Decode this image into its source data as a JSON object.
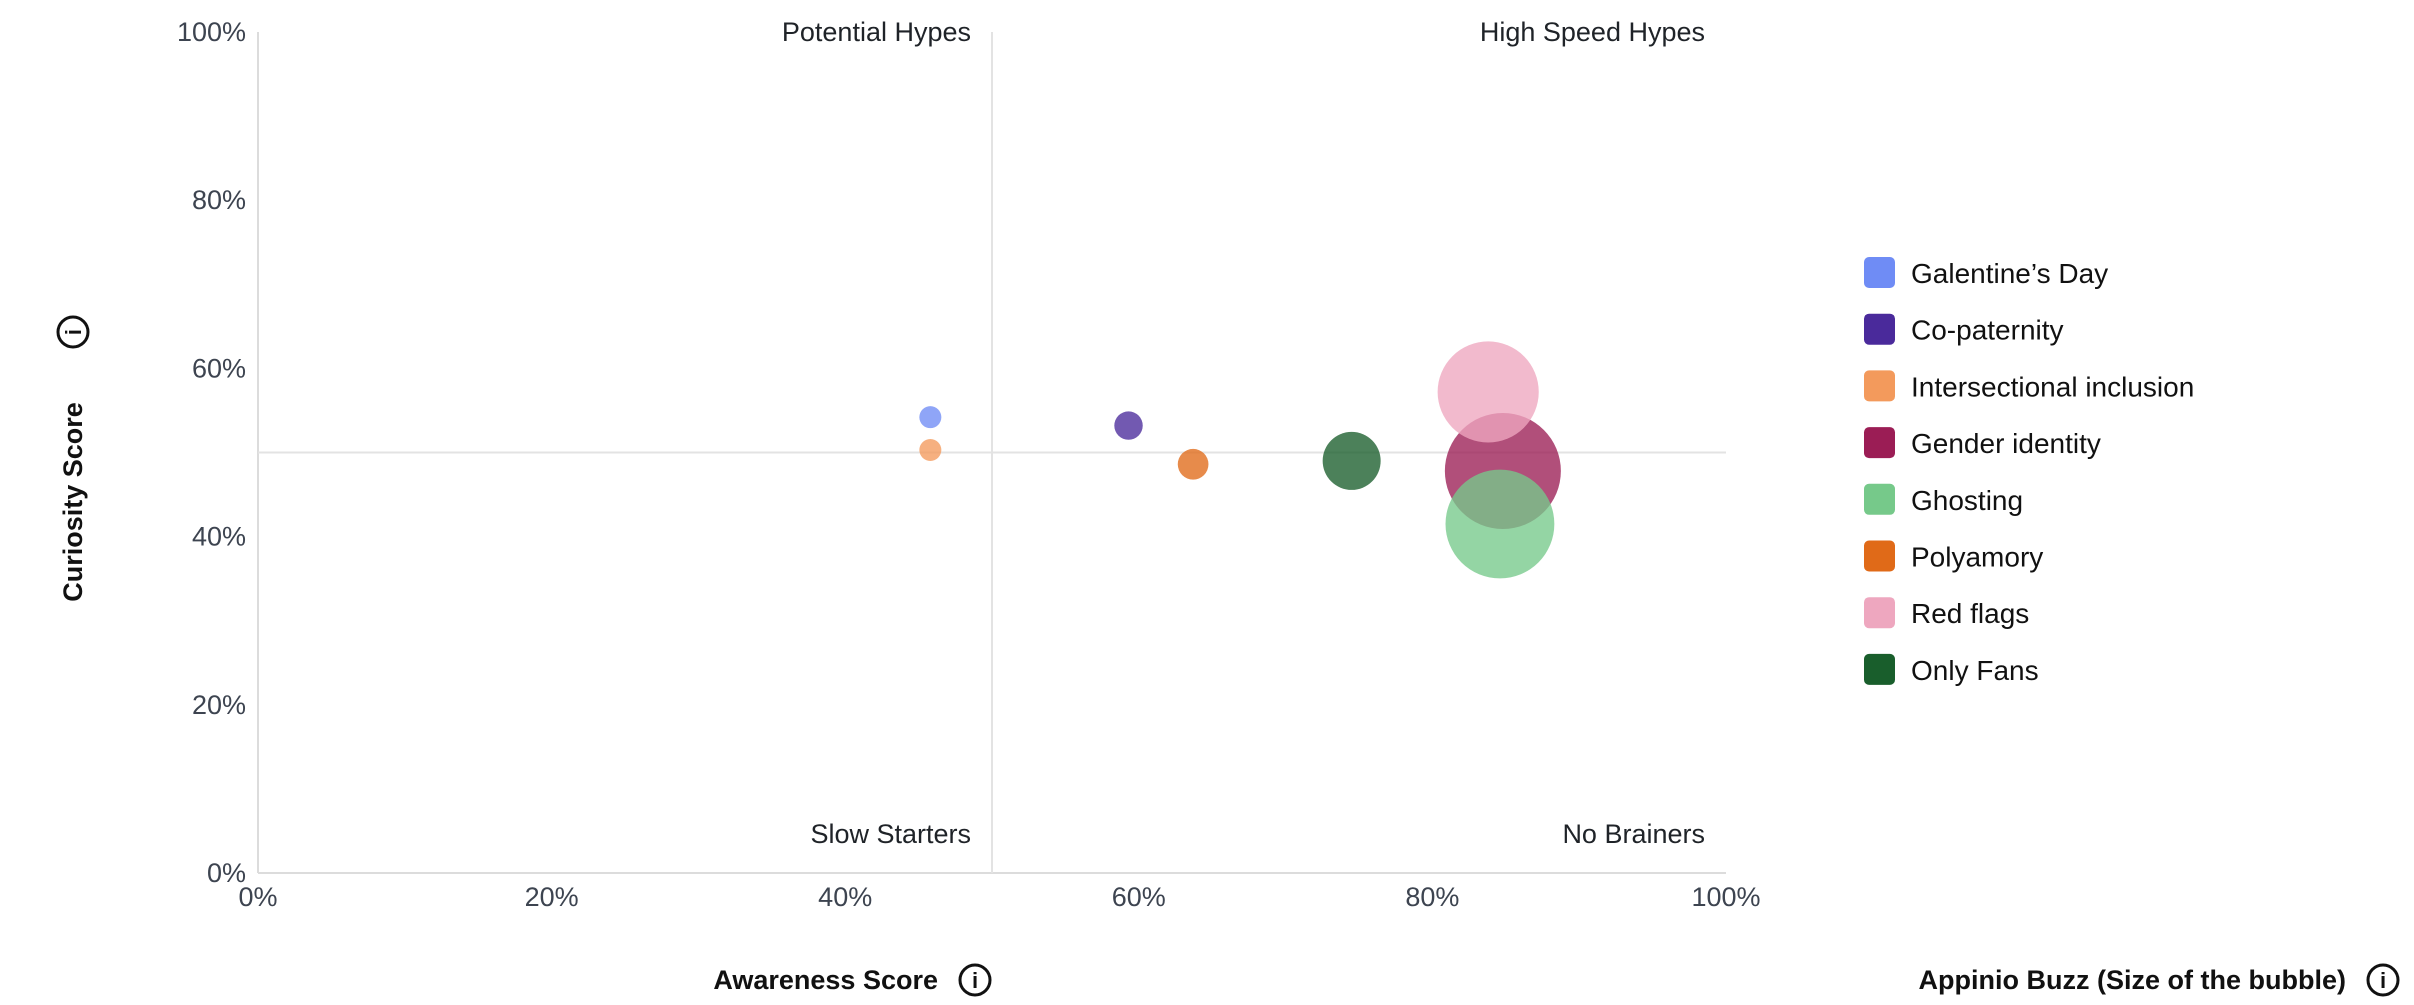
{
  "chart_data": {
    "type": "scatter",
    "subtype": "bubble",
    "xlabel": "Awareness Score",
    "ylabel": "Curiosity Score",
    "size_label": "Appinio Buzz (Size of the bubble)",
    "xlim": [
      0,
      100
    ],
    "ylim": [
      0,
      100
    ],
    "x_ticks": [
      "0%",
      "20%",
      "40%",
      "60%",
      "80%",
      "100%"
    ],
    "y_ticks": [
      "0%",
      "20%",
      "40%",
      "60%",
      "80%",
      "100%"
    ],
    "x_tick_values": [
      0,
      20,
      40,
      60,
      80,
      100
    ],
    "y_tick_values": [
      0,
      20,
      40,
      60,
      80,
      100
    ],
    "quadrant_divider": {
      "x": 50,
      "y": 50
    },
    "quadrants": {
      "top_left": "Potential Hypes",
      "top_right": "High Speed Hypes",
      "bottom_left": "Slow Starters",
      "bottom_right": "No Brainers"
    },
    "legend_position": "right",
    "grid": false,
    "series": [
      {
        "name": "Galentine’s Day",
        "color": "#6f8cf5",
        "x": 45.8,
        "y": 54.2,
        "size": 3
      },
      {
        "name": "Co-paternity",
        "color": "#4a2a9b",
        "x": 59.3,
        "y": 53.2,
        "size": 6
      },
      {
        "name": "Intersectional inclusion",
        "color": "#f39a5c",
        "x": 45.8,
        "y": 50.3,
        "size": 3
      },
      {
        "name": "Gender identity",
        "color": "#9b1d55",
        "x": 84.8,
        "y": 47.8,
        "size": 100
      },
      {
        "name": "Ghosting",
        "color": "#76c98a",
        "x": 84.6,
        "y": 41.5,
        "size": 88
      },
      {
        "name": "Polyamory",
        "color": "#e06a18",
        "x": 63.7,
        "y": 48.6,
        "size": 7
      },
      {
        "name": "Red flags",
        "color": "#eea7bf",
        "x": 83.8,
        "y": 57.2,
        "size": 76
      },
      {
        "name": "Only Fans",
        "color": "#195e2c",
        "x": 74.5,
        "y": 49.0,
        "size": 25
      }
    ]
  }
}
